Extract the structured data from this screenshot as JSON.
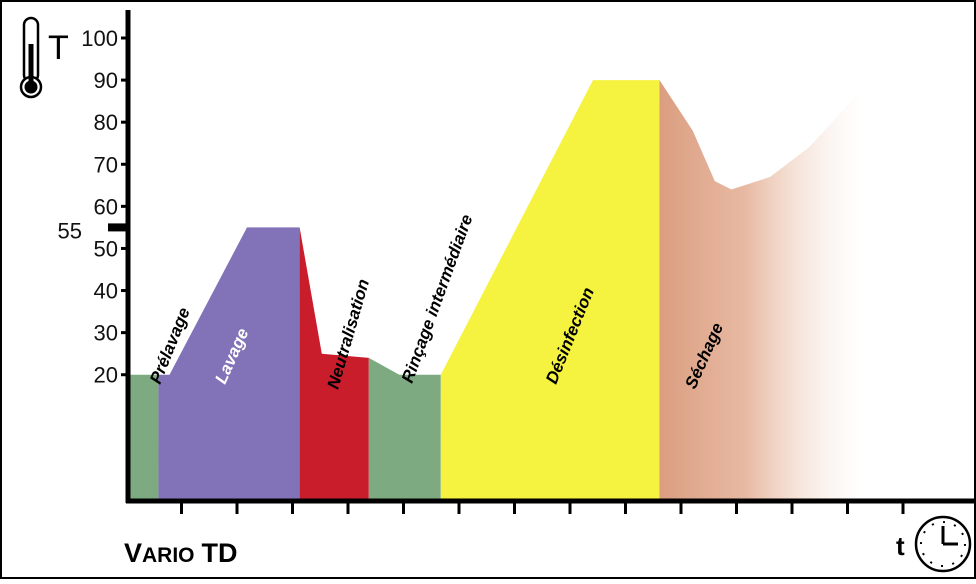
{
  "colors": {
    "axis": "#000000",
    "prelavage": "#7daa80",
    "lavage": "#8273b8",
    "neutralisation": "#c91d2b",
    "rincage": "#7daa80",
    "desinfection": "#f5f240",
    "sechage": "#e0a080",
    "highlight_90": "#c8102e"
  },
  "icons": {
    "thermometer": "thermometer-icon",
    "clock": "clock-icon"
  },
  "axis": {
    "y_symbol": "T",
    "x_symbol": "t",
    "special_marker": "55"
  },
  "brand": "Vario TD",
  "chart_data": {
    "type": "area",
    "title": "Vario TD",
    "xlabel": "t",
    "ylabel": "T",
    "ylim": [
      0,
      100
    ],
    "yticks": [
      {
        "value": 100,
        "label": "100"
      },
      {
        "value": 90,
        "label": "90",
        "highlight": true
      },
      {
        "value": 80,
        "label": "80"
      },
      {
        "value": 70,
        "label": "70"
      },
      {
        "value": 60,
        "label": "60"
      },
      {
        "value": 50,
        "label": "50"
      },
      {
        "value": 40,
        "label": "40"
      },
      {
        "value": 30,
        "label": "30"
      },
      {
        "value": 20,
        "label": "20"
      }
    ],
    "marker": {
      "value": 55,
      "label": "55"
    },
    "xlim": [
      0,
      15
    ],
    "xticks": [
      1,
      2,
      3,
      4,
      5,
      6,
      7,
      8,
      9,
      10,
      11,
      12,
      13,
      14
    ],
    "grid": false,
    "phases": [
      {
        "name": "Prélavage",
        "label": "Prélavage",
        "color": "#7daa80",
        "text_color": "#000000",
        "points": [
          [
            0,
            20
          ],
          [
            0.55,
            20
          ]
        ]
      },
      {
        "name": "Lavage",
        "label": "Lavage",
        "color": "#8273b8",
        "text_color": "#ffffff",
        "points": [
          [
            0.55,
            20
          ],
          [
            0.75,
            20
          ],
          [
            2.15,
            55
          ],
          [
            3.1,
            55
          ]
        ]
      },
      {
        "name": "Neutralisation",
        "label": "Neutralisation",
        "color": "#c91d2b",
        "text_color": "#000000",
        "points": [
          [
            3.1,
            55
          ],
          [
            3.5,
            25
          ],
          [
            4.35,
            24
          ]
        ]
      },
      {
        "name": "Rinçage intermédiaire",
        "label": "Rinçage intermédiaire",
        "color": "#7daa80",
        "text_color": "#000000",
        "points": [
          [
            4.35,
            24
          ],
          [
            4.9,
            20
          ],
          [
            5.65,
            20
          ]
        ]
      },
      {
        "name": "Désinfection",
        "label": "Désinfection",
        "color": "#f5f240",
        "text_color": "#000000",
        "points": [
          [
            5.65,
            20
          ],
          [
            8.4,
            90
          ],
          [
            9.6,
            90
          ]
        ]
      },
      {
        "name": "Séchage",
        "label": "Séchage",
        "color": "#e0a080",
        "text_color": "#000000",
        "fade": true,
        "points": [
          [
            9.6,
            90
          ],
          [
            10.2,
            78
          ],
          [
            10.6,
            66
          ],
          [
            10.9,
            64
          ],
          [
            11.6,
            67
          ],
          [
            12.3,
            74
          ],
          [
            13.0,
            84
          ],
          [
            13.3,
            89
          ],
          [
            13.8,
            89
          ]
        ]
      }
    ]
  }
}
